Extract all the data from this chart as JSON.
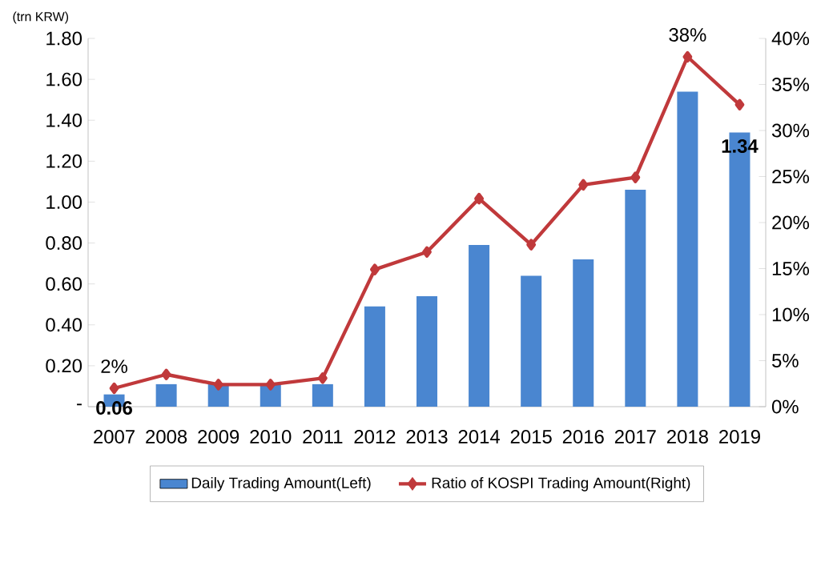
{
  "chart_data": {
    "type": "bar",
    "ylabel": "(trn KRW)",
    "categories": [
      "2007",
      "2008",
      "2009",
      "2010",
      "2011",
      "2012",
      "2013",
      "2014",
      "2015",
      "2016",
      "2017",
      "2018",
      "2019"
    ],
    "series": [
      {
        "name": "Daily Trading Amount(Left)",
        "color": "#4a86d0",
        "values": [
          0.06,
          0.11,
          0.11,
          0.11,
          0.11,
          0.49,
          0.54,
          0.79,
          0.64,
          0.72,
          1.06,
          1.54,
          1.34
        ],
        "value_labels": [
          "0.06",
          null,
          null,
          null,
          null,
          null,
          null,
          null,
          null,
          null,
          null,
          null,
          "1.34"
        ]
      },
      {
        "name": "Ratio of KOSPI Trading Amount(Right)",
        "type": "line",
        "axis": "y2",
        "color": "#c0393b",
        "marker": "diamond",
        "line_style": "solid",
        "values": [
          2,
          3.5,
          2.4,
          2.4,
          3.1,
          14.9,
          16.8,
          22.6,
          17.6,
          24.1,
          24.9,
          38,
          32.8
        ],
        "value_labels": [
          "2%",
          null,
          null,
          null,
          null,
          null,
          null,
          null,
          null,
          null,
          null,
          "38%",
          null
        ]
      }
    ],
    "ylim": [
      0,
      1.8
    ],
    "yticks": [
      {
        "value": 0,
        "label": "-"
      },
      {
        "value": 0.2,
        "label": "0.20"
      },
      {
        "value": 0.4,
        "label": "0.40"
      },
      {
        "value": 0.6,
        "label": "0.60"
      },
      {
        "value": 0.8,
        "label": "0.80"
      },
      {
        "value": 1.0,
        "label": "1.00"
      },
      {
        "value": 1.2,
        "label": "1.20"
      },
      {
        "value": 1.4,
        "label": "1.40"
      },
      {
        "value": 1.6,
        "label": "1.60"
      },
      {
        "value": 1.8,
        "label": "1.80"
      }
    ],
    "y2lim": [
      0,
      40
    ],
    "y2ticks": [
      {
        "value": 0,
        "label": "0%"
      },
      {
        "value": 5,
        "label": "5%"
      },
      {
        "value": 10,
        "label": "10%"
      },
      {
        "value": 15,
        "label": "15%"
      },
      {
        "value": 20,
        "label": "20%"
      },
      {
        "value": 25,
        "label": "25%"
      },
      {
        "value": 30,
        "label": "30%"
      },
      {
        "value": 35,
        "label": "35%"
      },
      {
        "value": 40,
        "label": "40%"
      }
    ],
    "grid": false,
    "legend": "bottom"
  }
}
